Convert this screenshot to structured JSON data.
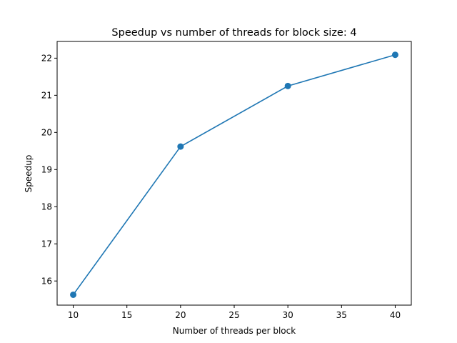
{
  "chart_data": {
    "type": "line",
    "title": "Speedup vs number of threads for block size: 4",
    "xlabel": "Number of threads per block",
    "ylabel": "Speedup",
    "xlim": [
      8.5,
      41.5
    ],
    "ylim": [
      15.35,
      22.45
    ],
    "xticks": [
      10,
      15,
      20,
      25,
      30,
      35,
      40
    ],
    "yticks": [
      16,
      17,
      18,
      19,
      20,
      21,
      22
    ],
    "grid": false,
    "series": [
      {
        "name": "Speedup",
        "color": "#1f77b4",
        "marker": "circle",
        "x": [
          10,
          20,
          30,
          40
        ],
        "y": [
          15.63,
          19.62,
          21.25,
          22.09
        ]
      }
    ]
  }
}
